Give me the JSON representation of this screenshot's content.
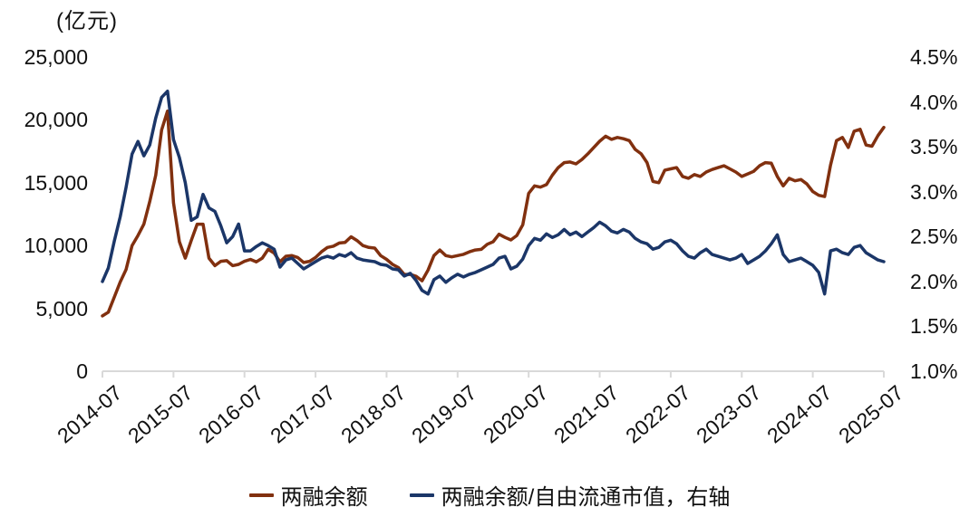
{
  "chart_data": {
    "type": "line",
    "title_unit": "(亿元)",
    "grid": "off",
    "background": "#FFFFFF",
    "axis_line_color": "#D9D9D9",
    "x_axis": {
      "start": "2014-07",
      "end": "2025-07",
      "months_per_tick": 12,
      "tick_labels": [
        "2014-07",
        "2015-07",
        "2016-07",
        "2017-07",
        "2018-07",
        "2019-07",
        "2020-07",
        "2021-07",
        "2022-07",
        "2023-07",
        "2024-07",
        "2025-07"
      ]
    },
    "left_axis": {
      "range": [
        0,
        25000
      ],
      "tick_labels": [
        "0",
        "5,000",
        "10,000",
        "15,000",
        "20,000",
        "25,000"
      ]
    },
    "right_axis": {
      "range": [
        1.0,
        4.5
      ],
      "tick_labels": [
        "1.0%",
        "1.5%",
        "2.0%",
        "2.5%",
        "3.0%",
        "3.5%",
        "4.0%",
        "4.5%"
      ]
    },
    "legend": {
      "position": "bottom"
    },
    "series": [
      {
        "name": "两融余额",
        "axis": "left",
        "color": "#81300F",
        "values": [
          4400,
          4700,
          5900,
          7100,
          8100,
          10000,
          10800,
          11700,
          13500,
          15600,
          19200,
          20700,
          13400,
          10300,
          9000,
          10400,
          11700,
          11700,
          9000,
          8400,
          8750,
          8800,
          8400,
          8500,
          8750,
          8900,
          8700,
          9000,
          9700,
          9400,
          8700,
          9150,
          9200,
          9050,
          8650,
          8750,
          9050,
          9500,
          9850,
          9950,
          10200,
          10250,
          10700,
          10400,
          10000,
          9850,
          9800,
          9200,
          8900,
          8500,
          8250,
          7700,
          7700,
          7550,
          7200,
          8050,
          9200,
          9650,
          9200,
          9100,
          9200,
          9300,
          9500,
          9650,
          9700,
          10100,
          10300,
          10900,
          10650,
          10450,
          10800,
          11650,
          14150,
          14750,
          14650,
          14850,
          15600,
          16200,
          16600,
          16650,
          16500,
          16850,
          17300,
          17800,
          18300,
          18700,
          18450,
          18600,
          18500,
          18350,
          17650,
          17300,
          16600,
          15100,
          15000,
          16000,
          16100,
          16200,
          15500,
          15350,
          15650,
          15500,
          15850,
          16050,
          16200,
          16350,
          16100,
          15850,
          15500,
          15700,
          15900,
          16350,
          16600,
          16550,
          15500,
          14750,
          15350,
          15150,
          15250,
          14900,
          14300,
          14000,
          13900,
          16400,
          18350,
          18600,
          17800,
          19100,
          19250,
          18000,
          17900,
          18750,
          19400
        ]
      },
      {
        "name": "两融余额/自由流通市值，右轴",
        "axis": "right",
        "color": "#1B3668",
        "values": [
          2.0,
          2.15,
          2.45,
          2.72,
          3.05,
          3.42,
          3.56,
          3.4,
          3.52,
          3.82,
          4.05,
          4.12,
          3.58,
          3.38,
          3.1,
          2.68,
          2.72,
          2.97,
          2.82,
          2.78,
          2.62,
          2.43,
          2.5,
          2.64,
          2.34,
          2.34,
          2.39,
          2.43,
          2.4,
          2.36,
          2.16,
          2.24,
          2.26,
          2.2,
          2.14,
          2.18,
          2.22,
          2.26,
          2.28,
          2.26,
          2.3,
          2.28,
          2.32,
          2.26,
          2.24,
          2.23,
          2.22,
          2.19,
          2.18,
          2.14,
          2.13,
          2.06,
          2.09,
          2.01,
          1.9,
          1.86,
          2.02,
          2.06,
          1.99,
          2.04,
          2.08,
          2.05,
          2.08,
          2.1,
          2.13,
          2.16,
          2.19,
          2.26,
          2.28,
          2.14,
          2.17,
          2.25,
          2.4,
          2.48,
          2.46,
          2.53,
          2.49,
          2.52,
          2.58,
          2.52,
          2.55,
          2.5,
          2.55,
          2.6,
          2.66,
          2.62,
          2.56,
          2.54,
          2.58,
          2.55,
          2.48,
          2.44,
          2.42,
          2.36,
          2.38,
          2.44,
          2.46,
          2.42,
          2.34,
          2.28,
          2.26,
          2.32,
          2.36,
          2.3,
          2.28,
          2.26,
          2.24,
          2.26,
          2.3,
          2.2,
          2.24,
          2.28,
          2.34,
          2.42,
          2.52,
          2.3,
          2.22,
          2.24,
          2.26,
          2.22,
          2.18,
          2.1,
          1.86,
          2.34,
          2.36,
          2.32,
          2.3,
          2.38,
          2.4,
          2.32,
          2.28,
          2.24,
          2.22
        ]
      }
    ]
  }
}
